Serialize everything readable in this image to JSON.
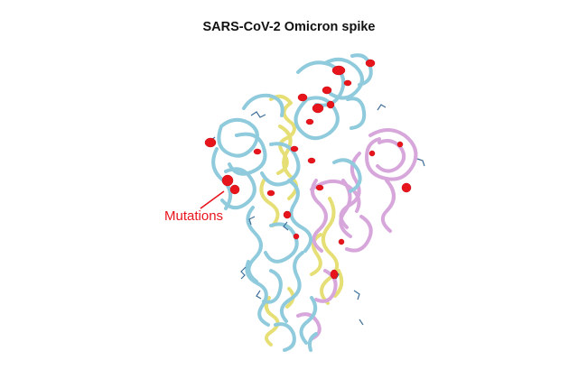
{
  "figure": {
    "title": "SARS-CoV-2 Omicron spike",
    "annotation": "Mutations"
  },
  "colors": {
    "chain_a": "#8fcbdc",
    "chain_b": "#e6df76",
    "chain_c": "#d7a7dc",
    "mutation": "#e8141c",
    "glycan": "#3f6f99",
    "annotation_text": "#e8141c",
    "background": "#ffffff"
  }
}
